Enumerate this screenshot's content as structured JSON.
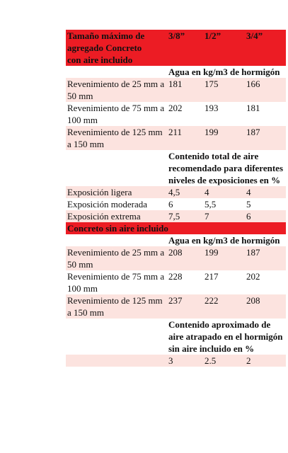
{
  "header": {
    "title": "Tamaño máximo de agregado Concreto con aire incluido",
    "sizes": [
      "3/8”",
      "1/2”",
      "3/4”"
    ]
  },
  "air_entrained": {
    "groups": [
      {
        "caption": "Agua en kg/m3 de hormigón",
        "rows": [
          [
            "Revenimiento de 25 mm a 50 mm",
            181,
            175,
            166
          ],
          [
            "Revenimiento de 75 mm a 100 mm",
            202,
            193,
            181
          ],
          [
            "Revenimiento de 125 mm a 150 mm",
            211,
            199,
            187
          ]
        ]
      },
      {
        "caption": "Contenido total de aire recomendado para diferentes niveles de exposiciones en %",
        "rows": [
          [
            "Exposición ligera",
            "4,5",
            4,
            4
          ],
          [
            "Exposición moderada",
            6,
            "5,5",
            5
          ],
          [
            "Exposición extrema",
            "7,5",
            7,
            6
          ]
        ]
      }
    ]
  },
  "non_air_entrained": {
    "title": "Concreto sin aire incluido",
    "groups": [
      {
        "caption": "Agua en kg/m3 de hormigón",
        "rows": [
          [
            "Revenimiento de 25 mm a 50 mm",
            208,
            199,
            187
          ],
          [
            "Revenimiento de 75 mm a 100 mm",
            228,
            217,
            202
          ],
          [
            "Revenimiento de 125 mm a 150 mm",
            237,
            222,
            208
          ]
        ]
      },
      {
        "caption": "Contenido aproximado de aire atrapado en el hormigón sin aire incluido en %",
        "rows": [
          [
            "",
            3,
            2.5,
            2
          ]
        ]
      }
    ]
  }
}
